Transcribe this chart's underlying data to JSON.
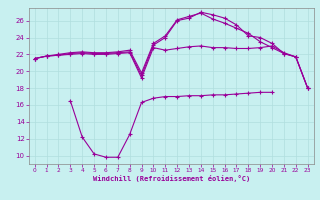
{
  "xlabel": "Windchill (Refroidissement éolien,°C)",
  "bg_color": "#c8f0f0",
  "grid_color": "#b0dede",
  "line_color": "#990099",
  "xlim": [
    -0.5,
    23.5
  ],
  "ylim": [
    9.0,
    27.5
  ],
  "xticks": [
    0,
    1,
    2,
    3,
    4,
    5,
    6,
    7,
    8,
    9,
    10,
    11,
    12,
    13,
    14,
    15,
    16,
    17,
    18,
    19,
    20,
    21,
    22,
    23
  ],
  "yticks": [
    10,
    12,
    14,
    16,
    18,
    20,
    22,
    24,
    26
  ],
  "line1_x": [
    0,
    1,
    2,
    3,
    4,
    5,
    6,
    7,
    8,
    9,
    10,
    11,
    12,
    13,
    14,
    15,
    16,
    17,
    18,
    19,
    20,
    21,
    22,
    23
  ],
  "line1_y": [
    21.5,
    21.8,
    21.9,
    22.0,
    22.1,
    22.0,
    22.0,
    22.1,
    22.2,
    19.2,
    22.8,
    22.5,
    22.7,
    22.9,
    23.0,
    22.8,
    22.8,
    22.7,
    22.7,
    22.8,
    23.0,
    22.2,
    21.7,
    18.0
  ],
  "line2_x": [
    0,
    1,
    2,
    3,
    4,
    5,
    6,
    7,
    8,
    9,
    10,
    11,
    12,
    13,
    14,
    15,
    16,
    17,
    18,
    19,
    20,
    21,
    22,
    23
  ],
  "line2_y": [
    21.5,
    21.8,
    21.9,
    22.1,
    22.2,
    22.1,
    22.1,
    22.2,
    22.3,
    19.5,
    23.1,
    24.0,
    26.0,
    26.3,
    27.0,
    26.7,
    26.3,
    25.5,
    24.2,
    24.0,
    23.3,
    22.1,
    21.7,
    18.0
  ],
  "line3_x": [
    0,
    1,
    2,
    3,
    4,
    5,
    6,
    7,
    8,
    9,
    10,
    11,
    12,
    13,
    14,
    15,
    16,
    17,
    18,
    19,
    20,
    21,
    22,
    23
  ],
  "line3_y": [
    21.5,
    21.8,
    22.0,
    22.2,
    22.3,
    22.2,
    22.2,
    22.3,
    22.5,
    19.8,
    23.3,
    24.2,
    26.1,
    26.5,
    26.9,
    26.2,
    25.7,
    25.1,
    24.5,
    23.5,
    22.8,
    22.1,
    21.7,
    18.0
  ],
  "line4_x": [
    3,
    4,
    5,
    6,
    7,
    8,
    9,
    10,
    11,
    12,
    13,
    14,
    15,
    16,
    17,
    18,
    19,
    20
  ],
  "line4_y": [
    16.5,
    12.2,
    10.2,
    9.8,
    9.8,
    12.5,
    16.3,
    16.8,
    17.0,
    17.0,
    17.1,
    17.1,
    17.2,
    17.2,
    17.3,
    17.4,
    17.5,
    17.5
  ]
}
